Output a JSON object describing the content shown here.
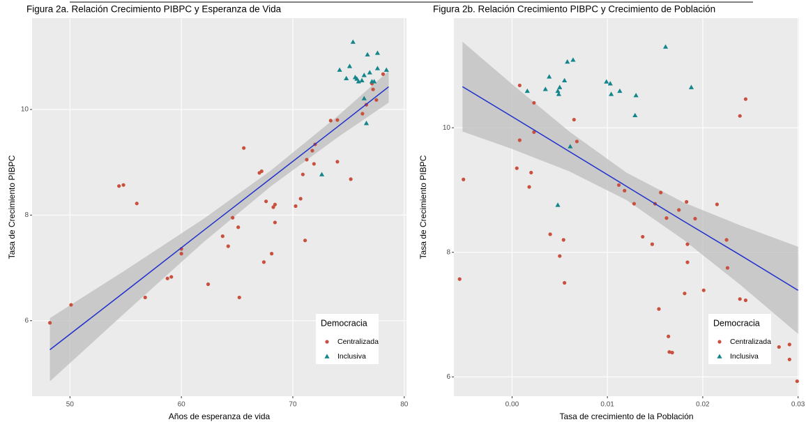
{
  "chart_data": [
    {
      "type": "scatter",
      "title": "Figura 2a. Relación Crecimiento PIBPC y Esperanza de Vida",
      "x_label": "Años de esperanza de vida",
      "y_label": "Tasa de Crecimiento PIBPC",
      "xlim": [
        46.6,
        80.2
      ],
      "ylim": [
        4.57,
        11.73
      ],
      "xticks": [
        50,
        60,
        70,
        80
      ],
      "yticks": [
        6,
        8,
        10
      ],
      "grid": true,
      "legend_title": "Democracia",
      "legend_position": "bottom-right",
      "series": [
        {
          "name": "Centralizada",
          "color": "#c9503f",
          "marker": "circle",
          "x": [
            48.2,
            50.1,
            54.4,
            54.8,
            56.0,
            56.75,
            58.75,
            59.1,
            60,
            60,
            62.4,
            65.6,
            63.7,
            64.2,
            64.6,
            65.1,
            65.2,
            67,
            67.2,
            67.4,
            67.6,
            68.1,
            68.25,
            68.4,
            68.4,
            70.25,
            70.7,
            70.9,
            71.1,
            71.25,
            71.75,
            72,
            71.9,
            73.4,
            74,
            74,
            75.2,
            76.25,
            76.6,
            77.1,
            77.2,
            77.5,
            78.1
          ],
          "values": [
            5.96,
            6.3,
            8.55,
            8.57,
            8.22,
            6.44,
            6.8,
            6.83,
            7.36,
            7.27,
            6.69,
            9.27,
            7.6,
            7.41,
            7.95,
            7.77,
            6.44,
            8.8,
            8.83,
            7.11,
            8.26,
            7.27,
            8.15,
            8.2,
            7.86,
            8.17,
            8.31,
            8.77,
            7.52,
            9.05,
            9.22,
            9.34,
            8.97,
            9.79,
            9.8,
            9.01,
            8.68,
            9.92,
            10.09,
            10.49,
            10.38,
            10.18,
            10.67
          ]
        },
        {
          "name": "Inclusiva",
          "color": "#13858b",
          "marker": "triangle",
          "x": [
            74.2,
            74.8,
            75.1,
            75.4,
            75.6,
            75.75,
            75.9,
            76.2,
            76.4,
            76.7,
            76.9,
            77.1,
            77.3,
            77.6,
            77.6,
            78.4,
            76.4,
            76.6,
            72.6
          ],
          "values": [
            10.75,
            10.59,
            10.82,
            11.28,
            10.61,
            10.58,
            10.53,
            10.55,
            10.65,
            11.04,
            10.7,
            10.53,
            10.53,
            11.07,
            10.78,
            10.75,
            10.21,
            9.74,
            8.77
          ]
        }
      ],
      "fit": {
        "color": "#1f2fcc",
        "band_color": "#bdbdbd",
        "x": [
          48.2,
          55,
          62,
          68,
          74,
          78.6
        ],
        "values": [
          5.45,
          6.56,
          7.71,
          8.69,
          9.67,
          10.43
        ],
        "lower": [
          4.85,
          6.16,
          7.49,
          8.54,
          9.47,
          10.13
        ],
        "upper": [
          6.05,
          6.96,
          7.93,
          8.84,
          9.87,
          10.73
        ]
      }
    },
    {
      "type": "scatter",
      "title": "Figura 2b. Relación Crecimiento PIBPC y Crecimiento de Población",
      "x_label": "Tasa de crecimiento de la Población",
      "y_label": "Tasa de Crecimiento PIBPC",
      "xlim": [
        -0.0061,
        0.0301
      ],
      "ylim": [
        5.69,
        11.76
      ],
      "xticks": [
        {
          "value": 0,
          "label": "0.00"
        },
        {
          "value": 0.01,
          "label": "0.01"
        },
        {
          "value": 0.02,
          "label": "0.02"
        },
        {
          "value": 0.03,
          "label": "0.03"
        }
      ],
      "yticks": [
        6,
        8,
        10
      ],
      "grid": true,
      "legend_title": "Democracia",
      "legend_position": "bottom-right",
      "series": [
        {
          "name": "Centralizada",
          "color": "#c9503f",
          "marker": "circle",
          "x": [
            -0.0055,
            -0.0051,
            0.0008,
            0.0005,
            0.0008,
            0.0023,
            0.0023,
            0.002,
            0.0018,
            0.0065,
            0.0068,
            0.004,
            0.005,
            0.0054,
            0.0055,
            0.0112,
            0.0118,
            0.0128,
            0.0137,
            0.0147,
            0.015,
            0.0154,
            0.0156,
            0.0162,
            0.0164,
            0.0165,
            0.0168,
            0.0175,
            0.0181,
            0.0183,
            0.0184,
            0.0184,
            0.0192,
            0.0201,
            0.0215,
            0.0225,
            0.0226,
            0.0239,
            0.0239,
            0.0245,
            0.0245,
            0.028,
            0.0291,
            0.0291,
            0.0299
          ],
          "values": [
            7.57,
            9.17,
            10.68,
            9.35,
            9.8,
            10.4,
            9.93,
            9.28,
            9.05,
            10.13,
            9.78,
            8.29,
            7.94,
            8.2,
            7.51,
            9.08,
            8.99,
            8.78,
            8.25,
            8.13,
            8.78,
            7.09,
            8.96,
            8.55,
            6.65,
            6.4,
            6.39,
            8.68,
            7.34,
            8.81,
            8.13,
            7.84,
            8.54,
            7.39,
            8.77,
            8.2,
            7.75,
            10.19,
            7.25,
            10.46,
            7.23,
            6.48,
            6.52,
            6.28,
            5.93
          ]
        },
        {
          "name": "Inclusiva",
          "color": "#13858b",
          "marker": "triangle",
          "x": [
            0.0016,
            0.0035,
            0.0039,
            0.0048,
            0.0049,
            0.005,
            0.0048,
            0.0055,
            0.0058,
            0.0064,
            0.0061,
            0.0099,
            0.0103,
            0.0104,
            0.0113,
            0.013,
            0.0129,
            0.0161,
            0.0188
          ],
          "values": [
            10.59,
            10.62,
            10.82,
            10.59,
            10.54,
            10.65,
            8.76,
            10.76,
            11.06,
            11.09,
            9.7,
            10.74,
            10.71,
            10.54,
            10.59,
            10.52,
            10.2,
            11.3,
            10.65
          ]
        }
      ],
      "fit": {
        "color": "#1f2fcc",
        "band_color": "#bdbdbd",
        "x": [
          -0.0052,
          0,
          0.006,
          0.012,
          0.018,
          0.024,
          0.03
        ],
        "values": [
          10.66,
          10.18,
          9.62,
          9.06,
          8.5,
          7.95,
          7.39
        ],
        "lower": [
          9.94,
          9.66,
          9.3,
          8.84,
          8.2,
          7.47,
          6.69
        ],
        "upper": [
          11.38,
          10.7,
          9.94,
          9.28,
          8.8,
          8.43,
          8.09
        ]
      }
    }
  ]
}
